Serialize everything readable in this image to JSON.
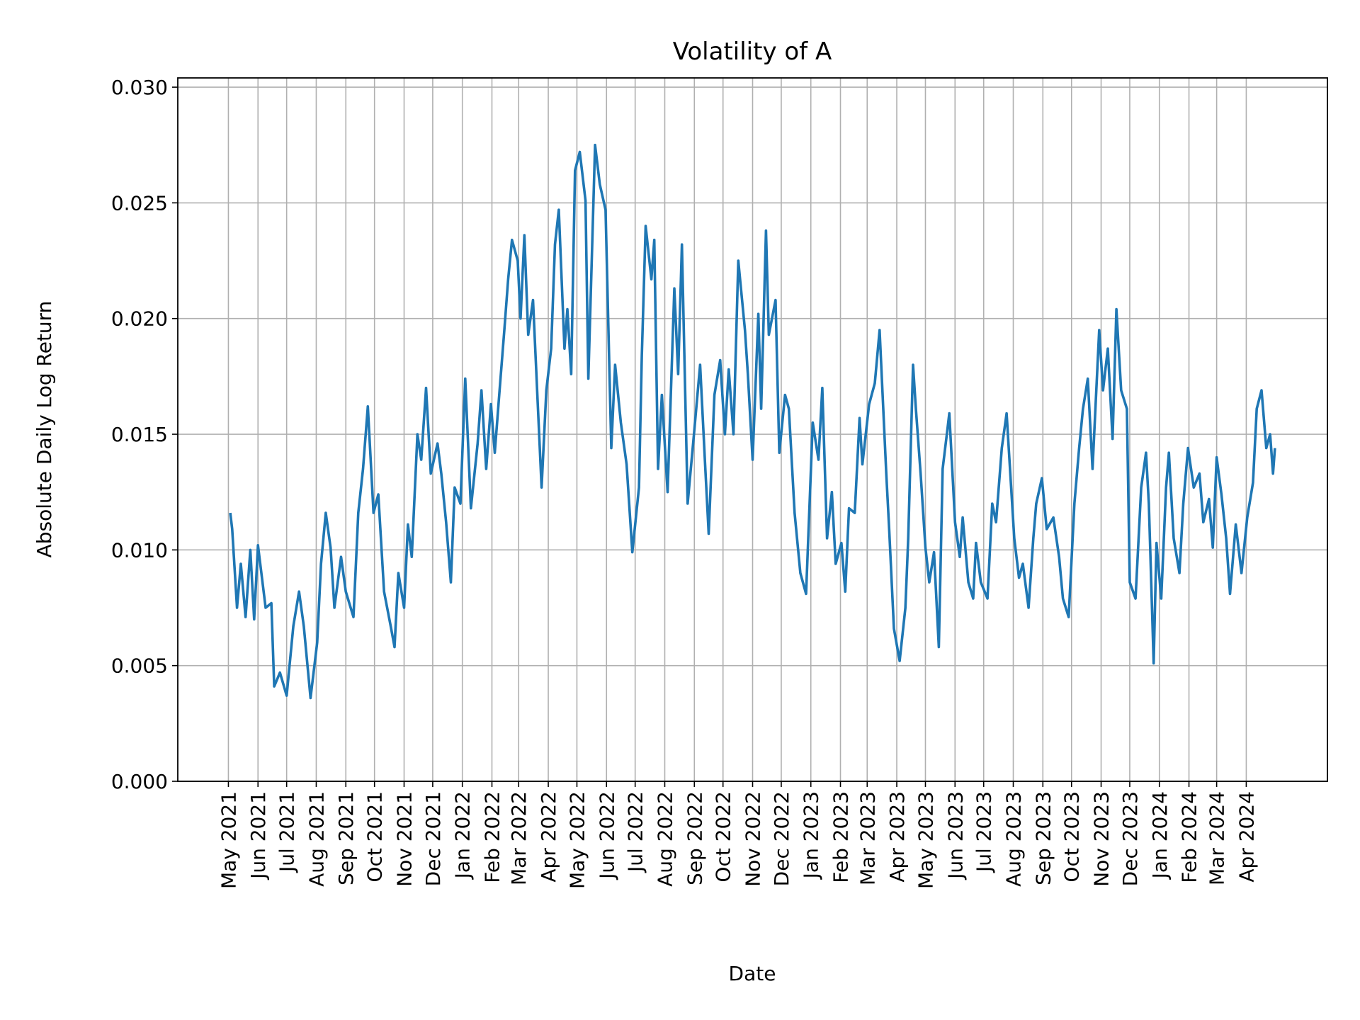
{
  "chart_data": {
    "type": "line",
    "title": "Volatility of A",
    "xlabel": "Date",
    "ylabel": "Absolute Daily Log Return",
    "ylim": [
      0,
      0.0304
    ],
    "xlim": [
      "2021-03-09",
      "2024-06-25"
    ],
    "yticks": [
      "0.000",
      "0.005",
      "0.010",
      "0.015",
      "0.020",
      "0.025",
      "0.030"
    ],
    "xticks": [
      "May 2021",
      "Jun 2021",
      "Jul 2021",
      "Aug 2021",
      "Sep 2021",
      "Oct 2021",
      "Nov 2021",
      "Dec 2021",
      "Jan 2022",
      "Feb 2022",
      "Mar 2022",
      "Apr 2022",
      "May 2022",
      "Jun 2022",
      "Jul 2022",
      "Aug 2022",
      "Sep 2022",
      "Oct 2022",
      "Nov 2022",
      "Dec 2022",
      "Jan 2023",
      "Feb 2023",
      "Mar 2023",
      "Apr 2023",
      "May 2023",
      "Jun 2023",
      "Jul 2023",
      "Aug 2023",
      "Sep 2023",
      "Oct 2023",
      "Nov 2023",
      "Dec 2023",
      "Jan 2024",
      "Feb 2024",
      "Mar 2024",
      "Apr 2024"
    ],
    "grid": true,
    "line_color": "#1f77b4",
    "points": [
      [
        "2021-05-03",
        0.0116
      ],
      [
        "2021-05-05",
        0.0109
      ],
      [
        "2021-05-10",
        0.0075
      ],
      [
        "2021-05-14",
        0.0094
      ],
      [
        "2021-05-19",
        0.0071
      ],
      [
        "2021-05-24",
        0.01
      ],
      [
        "2021-05-28",
        0.007
      ],
      [
        "2021-06-01",
        0.0102
      ],
      [
        "2021-06-09",
        0.0075
      ],
      [
        "2021-06-15",
        0.0077
      ],
      [
        "2021-06-18",
        0.0041
      ],
      [
        "2021-06-24",
        0.0047
      ],
      [
        "2021-07-01",
        0.0037
      ],
      [
        "2021-07-08",
        0.0067
      ],
      [
        "2021-07-14",
        0.0082
      ],
      [
        "2021-07-19",
        0.0067
      ],
      [
        "2021-07-26",
        0.0036
      ],
      [
        "2021-08-02",
        0.006
      ],
      [
        "2021-08-06",
        0.0094
      ],
      [
        "2021-08-11",
        0.0116
      ],
      [
        "2021-08-16",
        0.0101
      ],
      [
        "2021-08-20",
        0.0075
      ],
      [
        "2021-08-27",
        0.0097
      ],
      [
        "2021-09-01",
        0.0082
      ],
      [
        "2021-09-09",
        0.0071
      ],
      [
        "2021-09-14",
        0.0116
      ],
      [
        "2021-09-19",
        0.0135
      ],
      [
        "2021-09-24",
        0.0162
      ],
      [
        "2021-09-30",
        0.0116
      ],
      [
        "2021-10-05",
        0.0124
      ],
      [
        "2021-10-11",
        0.0082
      ],
      [
        "2021-10-18",
        0.0067
      ],
      [
        "2021-10-22",
        0.0058
      ],
      [
        "2021-10-26",
        0.009
      ],
      [
        "2021-11-01",
        0.0075
      ],
      [
        "2021-11-05",
        0.0111
      ],
      [
        "2021-11-09",
        0.0097
      ],
      [
        "2021-11-15",
        0.015
      ],
      [
        "2021-11-19",
        0.0139
      ],
      [
        "2021-11-24",
        0.017
      ],
      [
        "2021-11-29",
        0.0133
      ],
      [
        "2021-12-06",
        0.0146
      ],
      [
        "2021-12-10",
        0.0133
      ],
      [
        "2021-12-15",
        0.0112
      ],
      [
        "2021-12-20",
        0.0086
      ],
      [
        "2021-12-24",
        0.0127
      ],
      [
        "2021-12-30",
        0.012
      ],
      [
        "2022-01-04",
        0.0174
      ],
      [
        "2022-01-10",
        0.0118
      ],
      [
        "2022-01-17",
        0.0146
      ],
      [
        "2022-01-21",
        0.0169
      ],
      [
        "2022-01-26",
        0.0135
      ],
      [
        "2022-01-31",
        0.0163
      ],
      [
        "2022-02-04",
        0.0142
      ],
      [
        "2022-02-09",
        0.0169
      ],
      [
        "2022-02-14",
        0.0195
      ],
      [
        "2022-02-18",
        0.0217
      ],
      [
        "2022-02-22",
        0.0234
      ],
      [
        "2022-02-28",
        0.0225
      ],
      [
        "2022-03-03",
        0.02
      ],
      [
        "2022-03-07",
        0.0236
      ],
      [
        "2022-03-11",
        0.0193
      ],
      [
        "2022-03-16",
        0.0208
      ],
      [
        "2022-03-21",
        0.0163
      ],
      [
        "2022-03-25",
        0.0127
      ],
      [
        "2022-03-30",
        0.0169
      ],
      [
        "2022-04-04",
        0.0187
      ],
      [
        "2022-04-08",
        0.0232
      ],
      [
        "2022-04-12",
        0.0247
      ],
      [
        "2022-04-18",
        0.0187
      ],
      [
        "2022-04-21",
        0.0204
      ],
      [
        "2022-04-25",
        0.0176
      ],
      [
        "2022-04-29",
        0.0264
      ],
      [
        "2022-05-04",
        0.0272
      ],
      [
        "2022-05-10",
        0.0251
      ],
      [
        "2022-05-13",
        0.0174
      ],
      [
        "2022-05-20",
        0.0275
      ],
      [
        "2022-05-25",
        0.0258
      ],
      [
        "2022-05-31",
        0.0247
      ],
      [
        "2022-06-06",
        0.0144
      ],
      [
        "2022-06-10",
        0.018
      ],
      [
        "2022-06-16",
        0.0155
      ],
      [
        "2022-06-22",
        0.0137
      ],
      [
        "2022-06-28",
        0.0099
      ],
      [
        "2022-07-05",
        0.0127
      ],
      [
        "2022-07-08",
        0.0184
      ],
      [
        "2022-07-12",
        0.024
      ],
      [
        "2022-07-18",
        0.0217
      ],
      [
        "2022-07-21",
        0.0234
      ],
      [
        "2022-07-25",
        0.0135
      ],
      [
        "2022-07-29",
        0.0167
      ],
      [
        "2022-08-04",
        0.0125
      ],
      [
        "2022-08-11",
        0.0213
      ],
      [
        "2022-08-15",
        0.0176
      ],
      [
        "2022-08-19",
        0.0232
      ],
      [
        "2022-08-25",
        0.012
      ],
      [
        "2022-09-01",
        0.0152
      ],
      [
        "2022-09-07",
        0.018
      ],
      [
        "2022-09-12",
        0.0139
      ],
      [
        "2022-09-16",
        0.0107
      ],
      [
        "2022-09-22",
        0.0167
      ],
      [
        "2022-09-28",
        0.0182
      ],
      [
        "2022-10-03",
        0.015
      ],
      [
        "2022-10-07",
        0.0178
      ],
      [
        "2022-10-12",
        0.015
      ],
      [
        "2022-10-17",
        0.0225
      ],
      [
        "2022-10-24",
        0.0195
      ],
      [
        "2022-10-27",
        0.0176
      ],
      [
        "2022-11-01",
        0.0139
      ],
      [
        "2022-11-07",
        0.0202
      ],
      [
        "2022-11-10",
        0.0161
      ],
      [
        "2022-11-15",
        0.0238
      ],
      [
        "2022-11-18",
        0.0193
      ],
      [
        "2022-11-25",
        0.0208
      ],
      [
        "2022-11-29",
        0.0142
      ],
      [
        "2022-12-05",
        0.0167
      ],
      [
        "2022-12-09",
        0.0161
      ],
      [
        "2022-12-15",
        0.0116
      ],
      [
        "2022-12-21",
        0.009
      ],
      [
        "2022-12-27",
        0.0081
      ],
      [
        "2023-01-03",
        0.0155
      ],
      [
        "2023-01-09",
        0.0139
      ],
      [
        "2023-01-13",
        0.017
      ],
      [
        "2023-01-18",
        0.0105
      ],
      [
        "2023-01-23",
        0.0125
      ],
      [
        "2023-01-27",
        0.0094
      ],
      [
        "2023-02-02",
        0.0103
      ],
      [
        "2023-02-06",
        0.0082
      ],
      [
        "2023-02-10",
        0.0118
      ],
      [
        "2023-02-16",
        0.0116
      ],
      [
        "2023-02-21",
        0.0157
      ],
      [
        "2023-02-24",
        0.0137
      ],
      [
        "2023-03-03",
        0.0163
      ],
      [
        "2023-03-09",
        0.0172
      ],
      [
        "2023-03-14",
        0.0195
      ],
      [
        "2023-03-21",
        0.0133
      ],
      [
        "2023-03-24",
        0.0109
      ],
      [
        "2023-03-29",
        0.0066
      ],
      [
        "2023-04-04",
        0.0052
      ],
      [
        "2023-04-10",
        0.0075
      ],
      [
        "2023-04-13",
        0.0105
      ],
      [
        "2023-04-18",
        0.018
      ],
      [
        "2023-04-21",
        0.0161
      ],
      [
        "2023-04-26",
        0.0133
      ],
      [
        "2023-05-01",
        0.0101
      ],
      [
        "2023-05-05",
        0.0086
      ],
      [
        "2023-05-10",
        0.0099
      ],
      [
        "2023-05-15",
        0.0058
      ],
      [
        "2023-05-19",
        0.0135
      ],
      [
        "2023-05-24",
        0.0152
      ],
      [
        "2023-05-26",
        0.0159
      ],
      [
        "2023-06-01",
        0.0112
      ],
      [
        "2023-06-06",
        0.0097
      ],
      [
        "2023-06-09",
        0.0114
      ],
      [
        "2023-06-15",
        0.0086
      ],
      [
        "2023-06-20",
        0.0079
      ],
      [
        "2023-06-23",
        0.0103
      ],
      [
        "2023-06-28",
        0.0086
      ],
      [
        "2023-07-05",
        0.0079
      ],
      [
        "2023-07-10",
        0.012
      ],
      [
        "2023-07-14",
        0.0112
      ],
      [
        "2023-07-20",
        0.0144
      ],
      [
        "2023-07-25",
        0.0159
      ],
      [
        "2023-07-28",
        0.0139
      ],
      [
        "2023-08-02",
        0.0105
      ],
      [
        "2023-08-07",
        0.0088
      ],
      [
        "2023-08-11",
        0.0094
      ],
      [
        "2023-08-17",
        0.0075
      ],
      [
        "2023-08-22",
        0.0105
      ],
      [
        "2023-08-25",
        0.012
      ],
      [
        "2023-08-31",
        0.0131
      ],
      [
        "2023-09-05",
        0.0109
      ],
      [
        "2023-09-12",
        0.0114
      ],
      [
        "2023-09-18",
        0.0097
      ],
      [
        "2023-09-22",
        0.0079
      ],
      [
        "2023-09-28",
        0.0071
      ],
      [
        "2023-10-04",
        0.012
      ],
      [
        "2023-10-09",
        0.0144
      ],
      [
        "2023-10-13",
        0.0161
      ],
      [
        "2023-10-18",
        0.0174
      ],
      [
        "2023-10-23",
        0.0135
      ],
      [
        "2023-10-30",
        0.0195
      ],
      [
        "2023-11-03",
        0.0169
      ],
      [
        "2023-11-08",
        0.0187
      ],
      [
        "2023-11-13",
        0.0148
      ],
      [
        "2023-11-17",
        0.0204
      ],
      [
        "2023-11-22",
        0.0169
      ],
      [
        "2023-11-28",
        0.0161
      ],
      [
        "2023-12-01",
        0.0086
      ],
      [
        "2023-12-07",
        0.0079
      ],
      [
        "2023-12-13",
        0.0127
      ],
      [
        "2023-12-18",
        0.0142
      ],
      [
        "2023-12-21",
        0.012
      ],
      [
        "2023-12-26",
        0.0051
      ],
      [
        "2023-12-29",
        0.0103
      ],
      [
        "2024-01-03",
        0.0079
      ],
      [
        "2024-01-08",
        0.0127
      ],
      [
        "2024-01-11",
        0.0142
      ],
      [
        "2024-01-16",
        0.0105
      ],
      [
        "2024-01-22",
        0.009
      ],
      [
        "2024-01-26",
        0.012
      ],
      [
        "2024-01-31",
        0.0144
      ],
      [
        "2024-02-06",
        0.0127
      ],
      [
        "2024-02-12",
        0.0133
      ],
      [
        "2024-02-16",
        0.0112
      ],
      [
        "2024-02-22",
        0.0122
      ],
      [
        "2024-02-26",
        0.0101
      ],
      [
        "2024-03-01",
        0.014
      ],
      [
        "2024-03-06",
        0.0124
      ],
      [
        "2024-03-11",
        0.0105
      ],
      [
        "2024-03-15",
        0.0081
      ],
      [
        "2024-03-21",
        0.0111
      ],
      [
        "2024-03-27",
        0.009
      ],
      [
        "2024-04-02",
        0.0114
      ],
      [
        "2024-04-08",
        0.0129
      ],
      [
        "2024-04-12",
        0.0161
      ],
      [
        "2024-04-17",
        0.0169
      ],
      [
        "2024-04-22",
        0.0144
      ],
      [
        "2024-04-26",
        0.015
      ],
      [
        "2024-04-29",
        0.0133
      ],
      [
        "2024-05-01",
        0.0144
      ]
    ]
  }
}
